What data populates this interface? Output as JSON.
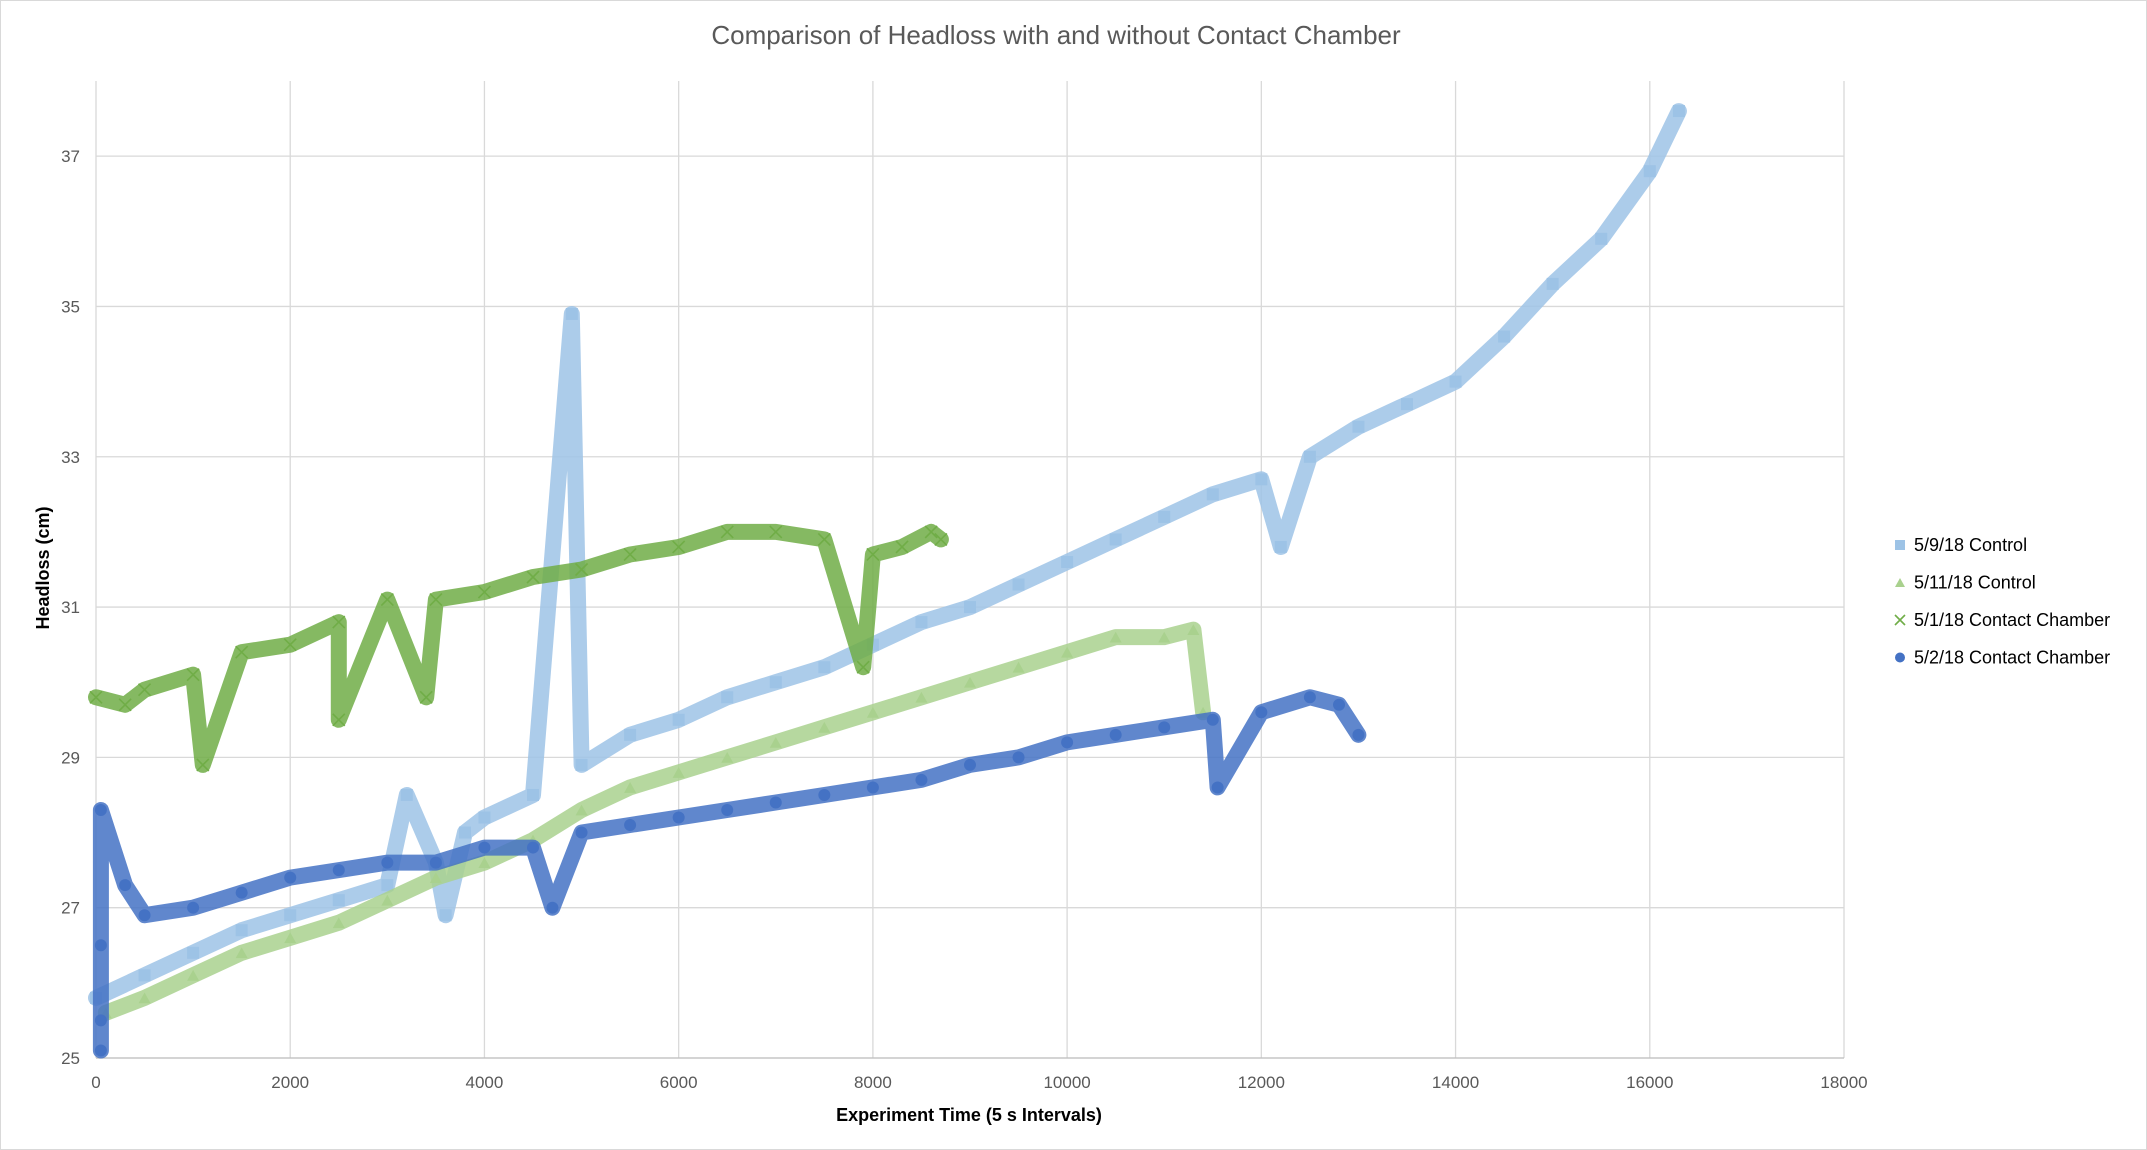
{
  "chart_data": {
    "type": "scatter",
    "title": "Comparison of Headloss with and without Contact Chamber",
    "xlabel": "Experiment Time (5 s Intervals)",
    "ylabel": "Headloss (cm)",
    "xlim": [
      0,
      18000
    ],
    "ylim": [
      25,
      38
    ],
    "x_ticks": [
      0,
      2000,
      4000,
      6000,
      8000,
      10000,
      12000,
      14000,
      16000,
      18000
    ],
    "y_ticks": [
      25,
      27,
      29,
      31,
      33,
      35,
      37
    ],
    "grid": true,
    "legend_position": "right",
    "series": [
      {
        "name": "5/9/18 Control",
        "marker": "square",
        "color": "#9DC3E6",
        "points": [
          [
            0,
            25.8
          ],
          [
            500,
            26.1
          ],
          [
            1000,
            26.4
          ],
          [
            1500,
            26.7
          ],
          [
            2000,
            26.9
          ],
          [
            2500,
            27.1
          ],
          [
            3000,
            27.3
          ],
          [
            3500,
            27.6
          ],
          [
            3600,
            26.9
          ],
          [
            3800,
            28.0
          ],
          [
            4000,
            28.2
          ],
          [
            4500,
            28.5
          ],
          [
            5000,
            28.9
          ],
          [
            5500,
            29.3
          ],
          [
            6000,
            29.5
          ],
          [
            6500,
            29.8
          ],
          [
            7000,
            30.0
          ],
          [
            7500,
            30.2
          ],
          [
            8000,
            30.5
          ],
          [
            8500,
            30.8
          ],
          [
            9000,
            31.0
          ],
          [
            9500,
            31.3
          ],
          [
            10000,
            31.6
          ],
          [
            10500,
            31.9
          ],
          [
            11000,
            32.2
          ],
          [
            11500,
            32.5
          ],
          [
            12000,
            32.7
          ],
          [
            12200,
            31.8
          ],
          [
            12500,
            33.0
          ],
          [
            13000,
            33.4
          ],
          [
            13500,
            33.7
          ],
          [
            14000,
            34.0
          ],
          [
            14500,
            34.6
          ],
          [
            15000,
            35.3
          ],
          [
            15500,
            35.9
          ],
          [
            16000,
            36.8
          ],
          [
            16300,
            37.6
          ],
          [
            4900,
            34.9
          ],
          [
            3200,
            28.5
          ]
        ]
      },
      {
        "name": "5/11/18 Control",
        "marker": "triangle",
        "color": "#A9D18E",
        "points": [
          [
            100,
            25.6
          ],
          [
            500,
            25.8
          ],
          [
            1000,
            26.1
          ],
          [
            1500,
            26.4
          ],
          [
            2000,
            26.6
          ],
          [
            2500,
            26.8
          ],
          [
            3000,
            27.1
          ],
          [
            3500,
            27.4
          ],
          [
            4000,
            27.6
          ],
          [
            4500,
            27.9
          ],
          [
            5000,
            28.3
          ],
          [
            5500,
            28.6
          ],
          [
            6000,
            28.8
          ],
          [
            6500,
            29.0
          ],
          [
            7000,
            29.2
          ],
          [
            7500,
            29.4
          ],
          [
            8000,
            29.6
          ],
          [
            8500,
            29.8
          ],
          [
            9000,
            30.0
          ],
          [
            9500,
            30.2
          ],
          [
            10000,
            30.4
          ],
          [
            10500,
            30.6
          ],
          [
            11000,
            30.6
          ],
          [
            11300,
            30.7
          ],
          [
            11400,
            29.6
          ]
        ]
      },
      {
        "name": "5/1/18 Contact Chamber",
        "marker": "x",
        "color": "#70AD47",
        "points": [
          [
            0,
            29.8
          ],
          [
            300,
            29.7
          ],
          [
            500,
            29.9
          ],
          [
            1000,
            30.1
          ],
          [
            1100,
            28.9
          ],
          [
            1500,
            30.4
          ],
          [
            2000,
            30.5
          ],
          [
            2500,
            30.8
          ],
          [
            2500,
            29.5
          ],
          [
            3000,
            31.1
          ],
          [
            3400,
            29.8
          ],
          [
            3500,
            31.1
          ],
          [
            4000,
            31.2
          ],
          [
            4500,
            31.4
          ],
          [
            5000,
            31.5
          ],
          [
            5500,
            31.7
          ],
          [
            6000,
            31.8
          ],
          [
            6500,
            32.0
          ],
          [
            7000,
            32.0
          ],
          [
            7500,
            31.9
          ],
          [
            7900,
            30.2
          ],
          [
            8000,
            31.7
          ],
          [
            8300,
            31.8
          ],
          [
            8600,
            32.0
          ],
          [
            8700,
            31.9
          ]
        ]
      },
      {
        "name": "5/2/18 Contact Chamber",
        "marker": "circle",
        "color": "#4472C4",
        "points": [
          [
            50,
            25.1
          ],
          [
            50,
            25.5
          ],
          [
            50,
            26.5
          ],
          [
            50,
            28.3
          ],
          [
            300,
            27.3
          ],
          [
            500,
            26.9
          ],
          [
            1000,
            27.0
          ],
          [
            1500,
            27.2
          ],
          [
            2000,
            27.4
          ],
          [
            2500,
            27.5
          ],
          [
            3000,
            27.6
          ],
          [
            3500,
            27.6
          ],
          [
            4000,
            27.8
          ],
          [
            4500,
            27.8
          ],
          [
            4700,
            27.0
          ],
          [
            5000,
            28.0
          ],
          [
            5500,
            28.1
          ],
          [
            6000,
            28.2
          ],
          [
            6500,
            28.3
          ],
          [
            7000,
            28.4
          ],
          [
            7500,
            28.5
          ],
          [
            8000,
            28.6
          ],
          [
            8500,
            28.7
          ],
          [
            9000,
            28.9
          ],
          [
            9500,
            29.0
          ],
          [
            10000,
            29.2
          ],
          [
            10500,
            29.3
          ],
          [
            11000,
            29.4
          ],
          [
            11500,
            29.5
          ],
          [
            11550,
            28.6
          ],
          [
            12000,
            29.6
          ],
          [
            12500,
            29.8
          ],
          [
            12800,
            29.7
          ],
          [
            13000,
            29.3
          ]
        ]
      }
    ]
  }
}
